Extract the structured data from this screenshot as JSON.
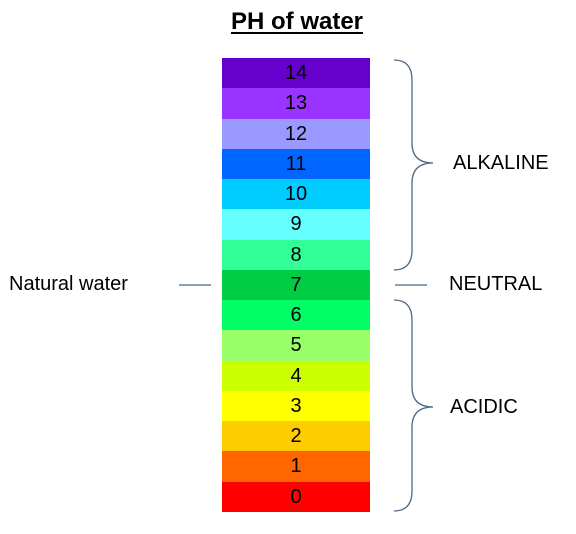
{
  "title": "PH of water",
  "levels": [
    {
      "value": "14",
      "color": "#6600cc"
    },
    {
      "value": "13",
      "color": "#9933ff"
    },
    {
      "value": "12",
      "color": "#9999ff"
    },
    {
      "value": "11",
      "color": "#0066ff"
    },
    {
      "value": "10",
      "color": "#00ccff"
    },
    {
      "value": "9",
      "color": "#66ffff"
    },
    {
      "value": "8",
      "color": "#33ff99"
    },
    {
      "value": "7",
      "color": "#00cc44"
    },
    {
      "value": "6",
      "color": "#00ff66"
    },
    {
      "value": "5",
      "color": "#99ff66"
    },
    {
      "value": "4",
      "color": "#ccff00"
    },
    {
      "value": "3",
      "color": "#ffff00"
    },
    {
      "value": "2",
      "color": "#ffcc00"
    },
    {
      "value": "1",
      "color": "#ff6600"
    },
    {
      "value": "0",
      "color": "#ff0000"
    }
  ],
  "labels": {
    "natural_water": "Natural water",
    "alkaline": "ALKALINE",
    "neutral": "NEUTRAL",
    "acidic": "ACIDIC"
  },
  "colors": {
    "bracket": "#4a6a8a"
  }
}
